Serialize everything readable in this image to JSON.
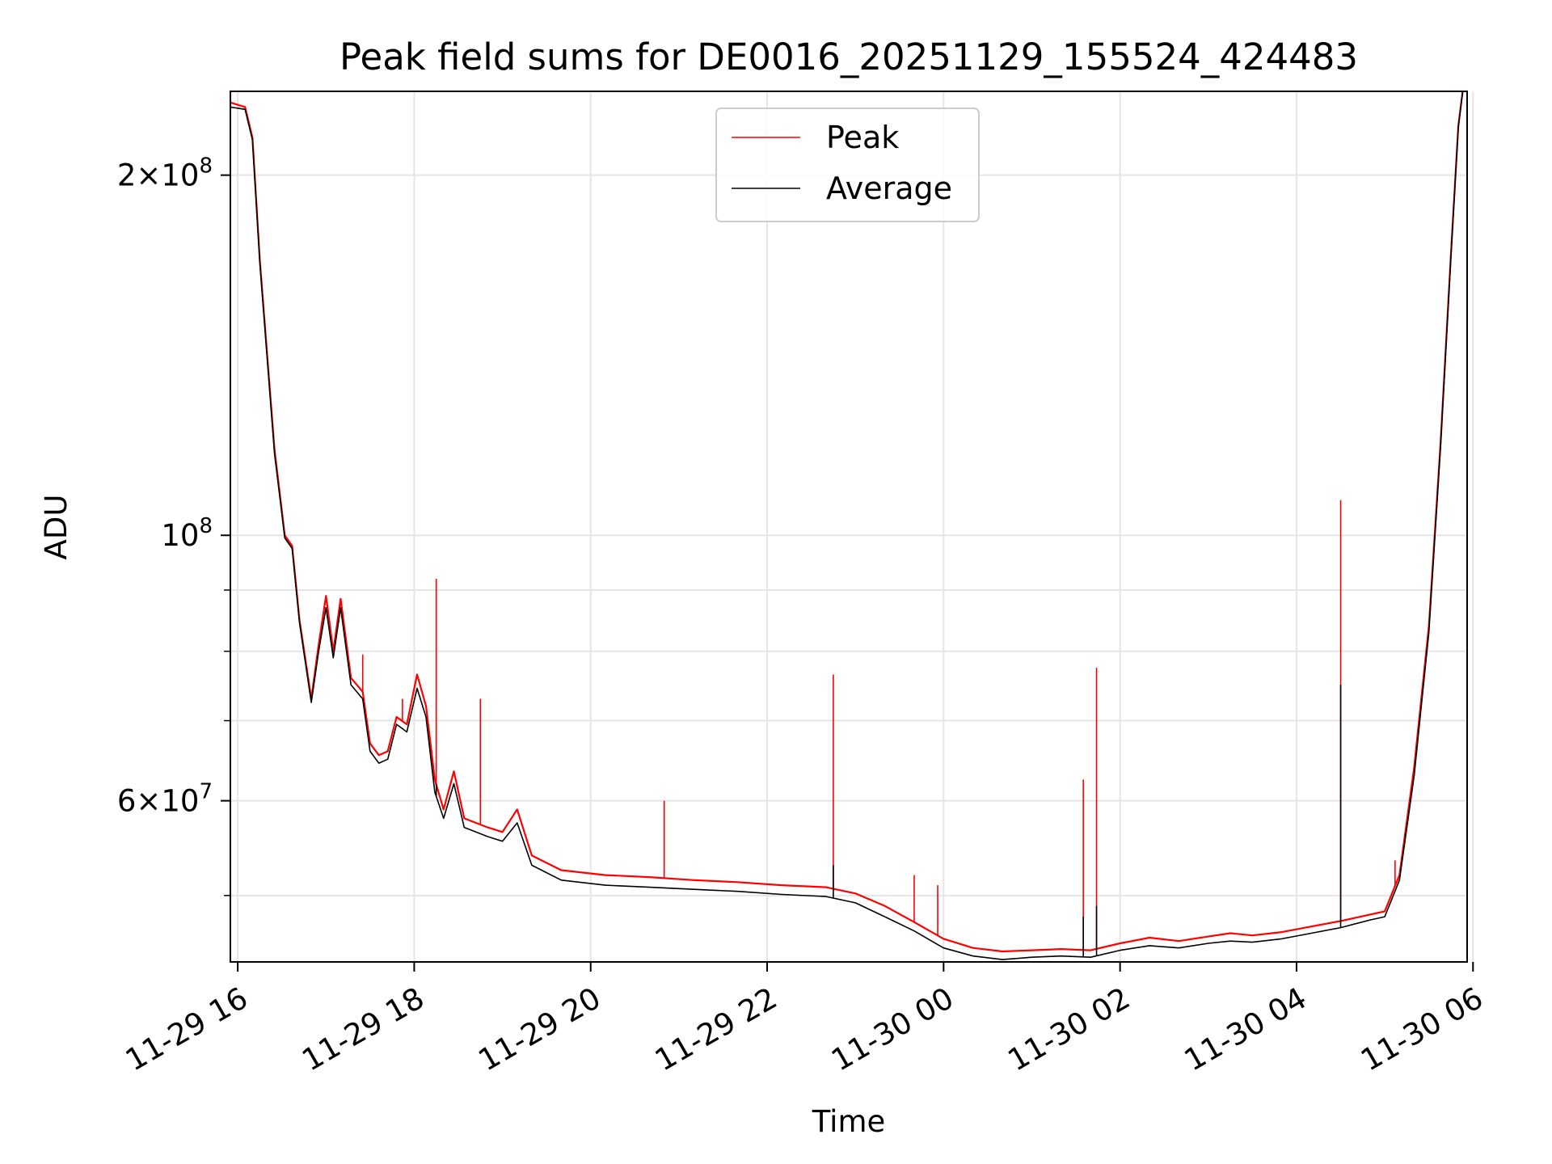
{
  "chart_data": {
    "type": "line",
    "title": "Peak field sums for DE0016_20251129_155524_424483",
    "xlabel": "Time",
    "ylabel": "ADU",
    "x_ticks": [
      "11-29 16",
      "11-29 18",
      "11-29 20",
      "11-29 22",
      "11-30 00",
      "11-30 02",
      "11-30 04",
      "11-30 06"
    ],
    "y_scale": "log",
    "y_ticks": [
      {
        "value": 60000000,
        "mantissa": "6",
        "exp": "7"
      },
      {
        "value": 100000000,
        "mantissa": "",
        "exp": "8"
      },
      {
        "value": 200000000,
        "mantissa": "2",
        "exp": "8"
      }
    ],
    "xlim": [
      "2025-11-29 15:55",
      "2025-11-30 05:56"
    ],
    "ylim": [
      44000000,
      235000000
    ],
    "grid": true,
    "legend_position": "top-center",
    "series": [
      {
        "name": "Peak",
        "color": "#ff0000",
        "points": [
          [
            "2025-11-29 15:55",
            230000000
          ],
          [
            "2025-11-29 16:05",
            228000000
          ],
          [
            "2025-11-29 16:10",
            215000000
          ],
          [
            "2025-11-29 16:15",
            170000000
          ],
          [
            "2025-11-29 16:25",
            118000000
          ],
          [
            "2025-11-29 16:32",
            100000000
          ],
          [
            "2025-11-29 16:37",
            98000000
          ],
          [
            "2025-11-29 16:42",
            85000000
          ],
          [
            "2025-11-29 16:50",
            73000000
          ],
          [
            "2025-11-29 16:55",
            81000000
          ],
          [
            "2025-11-29 17:00",
            89000000
          ],
          [
            "2025-11-29 17:05",
            80000000
          ],
          [
            "2025-11-29 17:10",
            88500000
          ],
          [
            "2025-11-29 17:17",
            76000000
          ],
          [
            "2025-11-29 17:25",
            74000000
          ],
          [
            "2025-11-29 17:30",
            67000000
          ],
          [
            "2025-11-29 17:36",
            65500000
          ],
          [
            "2025-11-29 17:42",
            66000000
          ],
          [
            "2025-11-29 17:48",
            70500000
          ],
          [
            "2025-11-29 17:55",
            69500000
          ],
          [
            "2025-11-29 18:02",
            76500000
          ],
          [
            "2025-11-29 18:08",
            72000000
          ],
          [
            "2025-11-29 18:14",
            62500000
          ],
          [
            "2025-11-29 18:20",
            59000000
          ],
          [
            "2025-11-29 18:27",
            63500000
          ],
          [
            "2025-11-29 18:34",
            58000000
          ],
          [
            "2025-11-29 18:42",
            57500000
          ],
          [
            "2025-11-29 18:50",
            57000000
          ],
          [
            "2025-11-29 19:00",
            56500000
          ],
          [
            "2025-11-29 19:10",
            59000000
          ],
          [
            "2025-11-29 19:20",
            54000000
          ],
          [
            "2025-11-29 19:40",
            52500000
          ],
          [
            "2025-11-29 20:10",
            52000000
          ],
          [
            "2025-11-29 20:40",
            51800000
          ],
          [
            "2025-11-29 21:10",
            51500000
          ],
          [
            "2025-11-29 21:40",
            51300000
          ],
          [
            "2025-11-29 22:10",
            51000000
          ],
          [
            "2025-11-29 22:40",
            50800000
          ],
          [
            "2025-11-29 23:00",
            50200000
          ],
          [
            "2025-11-29 23:20",
            49000000
          ],
          [
            "2025-11-29 23:40",
            47500000
          ],
          [
            "2025-11-30 00:00",
            46000000
          ],
          [
            "2025-11-30 00:20",
            45200000
          ],
          [
            "2025-11-30 00:40",
            44900000
          ],
          [
            "2025-11-30 01:00",
            45000000
          ],
          [
            "2025-11-30 01:20",
            45100000
          ],
          [
            "2025-11-30 01:40",
            45000000
          ],
          [
            "2025-11-30 02:00",
            45600000
          ],
          [
            "2025-11-30 02:20",
            46100000
          ],
          [
            "2025-11-30 02:40",
            45800000
          ],
          [
            "2025-11-30 03:00",
            46200000
          ],
          [
            "2025-11-30 03:15",
            46500000
          ],
          [
            "2025-11-30 03:30",
            46300000
          ],
          [
            "2025-11-30 03:50",
            46600000
          ],
          [
            "2025-11-30 04:10",
            47100000
          ],
          [
            "2025-11-30 04:30",
            47600000
          ],
          [
            "2025-11-30 04:50",
            48200000
          ],
          [
            "2025-11-30 05:00",
            48500000
          ],
          [
            "2025-11-30 05:10",
            52000000
          ],
          [
            "2025-11-30 05:20",
            64000000
          ],
          [
            "2025-11-30 05:30",
            84000000
          ],
          [
            "2025-11-30 05:38",
            120000000
          ],
          [
            "2025-11-30 05:45",
            172000000
          ],
          [
            "2025-11-30 05:50",
            220000000
          ],
          [
            "2025-11-30 05:53",
            235000000
          ]
        ],
        "spikes": [
          [
            "2025-11-29 18:15",
            92000000
          ],
          [
            "2025-11-29 18:45",
            73000000
          ],
          [
            "2025-11-29 17:25",
            79500000
          ],
          [
            "2025-11-29 17:52",
            73000000
          ],
          [
            "2025-11-29 20:50",
            60000000
          ],
          [
            "2025-11-29 22:45",
            76500000
          ],
          [
            "2025-11-30 01:35",
            62500000
          ],
          [
            "2025-11-30 01:44",
            77500000
          ],
          [
            "2025-11-30 04:30",
            107000000
          ],
          [
            "2025-11-30 05:07",
            53500000
          ],
          [
            "2025-11-29 23:40",
            52000000
          ],
          [
            "2025-11-29 23:56",
            51000000
          ]
        ]
      },
      {
        "name": "Average",
        "color": "#000000",
        "points": [
          [
            "2025-11-29 15:55",
            228000000
          ],
          [
            "2025-11-29 16:05",
            227000000
          ],
          [
            "2025-11-29 16:10",
            214000000
          ],
          [
            "2025-11-29 16:15",
            169000000
          ],
          [
            "2025-11-29 16:25",
            117000000
          ],
          [
            "2025-11-29 16:32",
            99500000
          ],
          [
            "2025-11-29 16:37",
            97500000
          ],
          [
            "2025-11-29 16:42",
            84500000
          ],
          [
            "2025-11-29 16:50",
            72500000
          ],
          [
            "2025-11-29 16:55",
            80000000
          ],
          [
            "2025-11-29 17:00",
            87000000
          ],
          [
            "2025-11-29 17:05",
            79000000
          ],
          [
            "2025-11-29 17:10",
            87000000
          ],
          [
            "2025-11-29 17:17",
            75000000
          ],
          [
            "2025-11-29 17:25",
            73000000
          ],
          [
            "2025-11-29 17:30",
            66000000
          ],
          [
            "2025-11-29 17:36",
            64500000
          ],
          [
            "2025-11-29 17:42",
            65000000
          ],
          [
            "2025-11-29 17:48",
            69500000
          ],
          [
            "2025-11-29 17:55",
            68500000
          ],
          [
            "2025-11-29 18:02",
            74500000
          ],
          [
            "2025-11-29 18:08",
            70500000
          ],
          [
            "2025-11-29 18:14",
            61000000
          ],
          [
            "2025-11-29 18:20",
            58000000
          ],
          [
            "2025-11-29 18:27",
            62000000
          ],
          [
            "2025-11-29 18:34",
            57000000
          ],
          [
            "2025-11-29 18:42",
            56500000
          ],
          [
            "2025-11-29 18:50",
            56000000
          ],
          [
            "2025-11-29 19:00",
            55500000
          ],
          [
            "2025-11-29 19:10",
            57500000
          ],
          [
            "2025-11-29 19:20",
            53000000
          ],
          [
            "2025-11-29 19:40",
            51500000
          ],
          [
            "2025-11-29 20:10",
            51000000
          ],
          [
            "2025-11-29 20:40",
            50800000
          ],
          [
            "2025-11-29 21:10",
            50600000
          ],
          [
            "2025-11-29 21:40",
            50400000
          ],
          [
            "2025-11-29 22:10",
            50100000
          ],
          [
            "2025-11-29 22:40",
            49900000
          ],
          [
            "2025-11-29 23:00",
            49300000
          ],
          [
            "2025-11-29 23:20",
            48000000
          ],
          [
            "2025-11-29 23:40",
            46700000
          ],
          [
            "2025-11-30 00:00",
            45200000
          ],
          [
            "2025-11-30 00:20",
            44500000
          ],
          [
            "2025-11-30 00:40",
            44200000
          ],
          [
            "2025-11-30 01:00",
            44400000
          ],
          [
            "2025-11-30 01:20",
            44500000
          ],
          [
            "2025-11-30 01:40",
            44400000
          ],
          [
            "2025-11-30 02:00",
            45000000
          ],
          [
            "2025-11-30 02:20",
            45400000
          ],
          [
            "2025-11-30 02:40",
            45200000
          ],
          [
            "2025-11-30 03:00",
            45600000
          ],
          [
            "2025-11-30 03:15",
            45800000
          ],
          [
            "2025-11-30 03:30",
            45700000
          ],
          [
            "2025-11-30 03:50",
            46000000
          ],
          [
            "2025-11-30 04:10",
            46500000
          ],
          [
            "2025-11-30 04:30",
            47000000
          ],
          [
            "2025-11-30 04:50",
            47700000
          ],
          [
            "2025-11-30 05:00",
            48000000
          ],
          [
            "2025-11-30 05:10",
            51500000
          ],
          [
            "2025-11-30 05:20",
            63000000
          ],
          [
            "2025-11-30 05:30",
            83000000
          ],
          [
            "2025-11-30 05:38",
            119000000
          ],
          [
            "2025-11-30 05:45",
            171000000
          ],
          [
            "2025-11-30 05:50",
            219000000
          ],
          [
            "2025-11-30 05:53",
            235000000
          ]
        ],
        "spikes": [
          [
            "2025-11-30 04:30",
            75000000
          ],
          [
            "2025-11-30 01:35",
            48000000
          ],
          [
            "2025-11-30 01:44",
            49000000
          ],
          [
            "2025-11-29 22:45",
            53000000
          ],
          [
            "2025-11-29 18:15",
            62000000
          ]
        ]
      }
    ]
  },
  "colors": {
    "grid": "#e5e5e5",
    "axes": "#000000",
    "legend_border": "#cccccc"
  }
}
